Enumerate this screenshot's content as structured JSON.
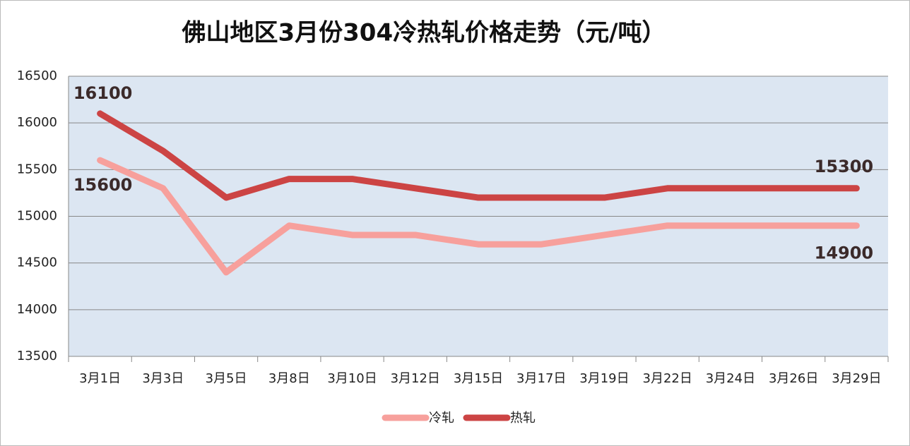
{
  "chart_data": {
    "type": "line",
    "title": "佛山地区3月份304冷热轧价格走势（元/吨）",
    "categories": [
      "3月1日",
      "3月3日",
      "3月5日",
      "3月8日",
      "3月10日",
      "3月12日",
      "3月15日",
      "3月17日",
      "3月19日",
      "3月22日",
      "3月24日",
      "3月26日",
      "3月29日"
    ],
    "series": [
      {
        "name": "冷轧",
        "color": "#f7a09c",
        "values": [
          15600,
          15300,
          14400,
          14900,
          14800,
          14800,
          14700,
          14700,
          14800,
          14900,
          14900,
          14900,
          14900
        ]
      },
      {
        "name": "热轧",
        "color": "#cc4444",
        "values": [
          16100,
          15700,
          15200,
          15400,
          15400,
          15300,
          15200,
          15200,
          15200,
          15300,
          15300,
          15300,
          15300
        ]
      }
    ],
    "ylim": [
      13500,
      16500
    ],
    "yticks": [
      13500,
      14000,
      14500,
      15000,
      15500,
      16000,
      16500
    ],
    "grid": true,
    "legend": "bottom"
  }
}
